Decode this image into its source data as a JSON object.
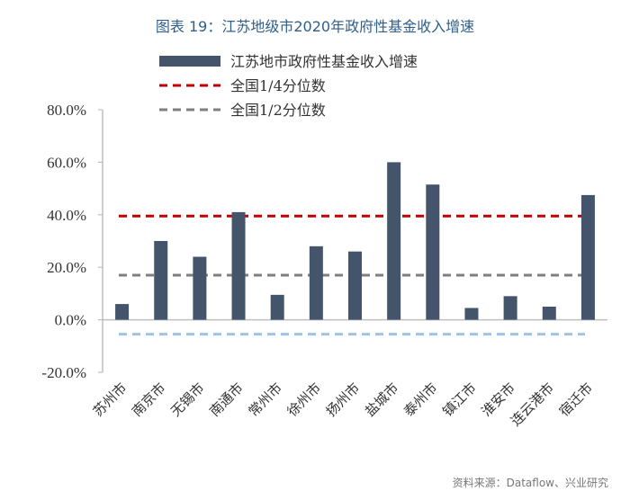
{
  "title": "图表 19：江苏地级市2020年政府性基金收入增速",
  "source": "资料来源：Dataflow、兴业研究",
  "chart_data": {
    "type": "bar",
    "categories": [
      "苏州市",
      "南京市",
      "无锡市",
      "南通市",
      "常州市",
      "徐州市",
      "扬州市",
      "盐城市",
      "泰州市",
      "镇江市",
      "淮安市",
      "连云港市",
      "宿迁市"
    ],
    "series": [
      {
        "name": "江苏地市政府性基金收入增速",
        "values": [
          6.0,
          30.0,
          24.0,
          41.0,
          9.5,
          28.0,
          26.0,
          60.0,
          51.5,
          4.5,
          9.0,
          5.0,
          47.5
        ],
        "color": "#44546a"
      }
    ],
    "reference_lines": [
      {
        "name": "全国1/4分位数",
        "value": 39.5,
        "color": "#c00000",
        "style": "dashed"
      },
      {
        "name": "全国1/2分位数",
        "value": 17.0,
        "color": "#7f7f7f",
        "style": "dashed"
      },
      {
        "name": "",
        "value": -5.5,
        "color": "#9dc3e6",
        "style": "dashed"
      }
    ],
    "ylim": [
      -20,
      80
    ],
    "yticks": [
      -20,
      0,
      20,
      40,
      60,
      80
    ],
    "ytick_labels": [
      "-20.0%",
      "0.0%",
      "20.0%",
      "40.0%",
      "60.0%",
      "80.0%"
    ],
    "xlabel": "",
    "ylabel": "",
    "legend_position": "top"
  }
}
